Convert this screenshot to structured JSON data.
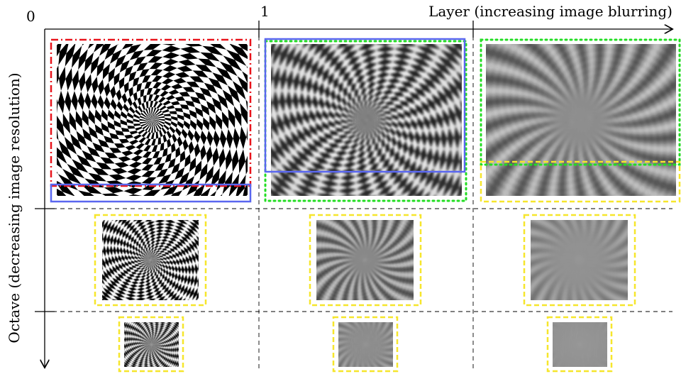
{
  "axes": {
    "origin_label": "0",
    "layer_tick_label": "1",
    "layer_axis_label": "Layer (increasing image blurring)",
    "octave_axis_label": "Octave (decreasing image resolution)"
  },
  "colors": {
    "red_frame": "#e8141c",
    "blue_frame": "#5a67f0",
    "green_frame": "#22dd22",
    "yellow_frame": "#f6e62c",
    "axis": "#000000"
  },
  "grid": {
    "octaves": [
      {
        "octave": 0,
        "blur_levels": [
          0,
          1,
          2
        ]
      },
      {
        "octave": 1,
        "blur_levels": [
          0,
          1,
          2
        ]
      },
      {
        "octave": 2,
        "blur_levels": [
          0,
          1,
          2
        ]
      }
    ]
  }
}
